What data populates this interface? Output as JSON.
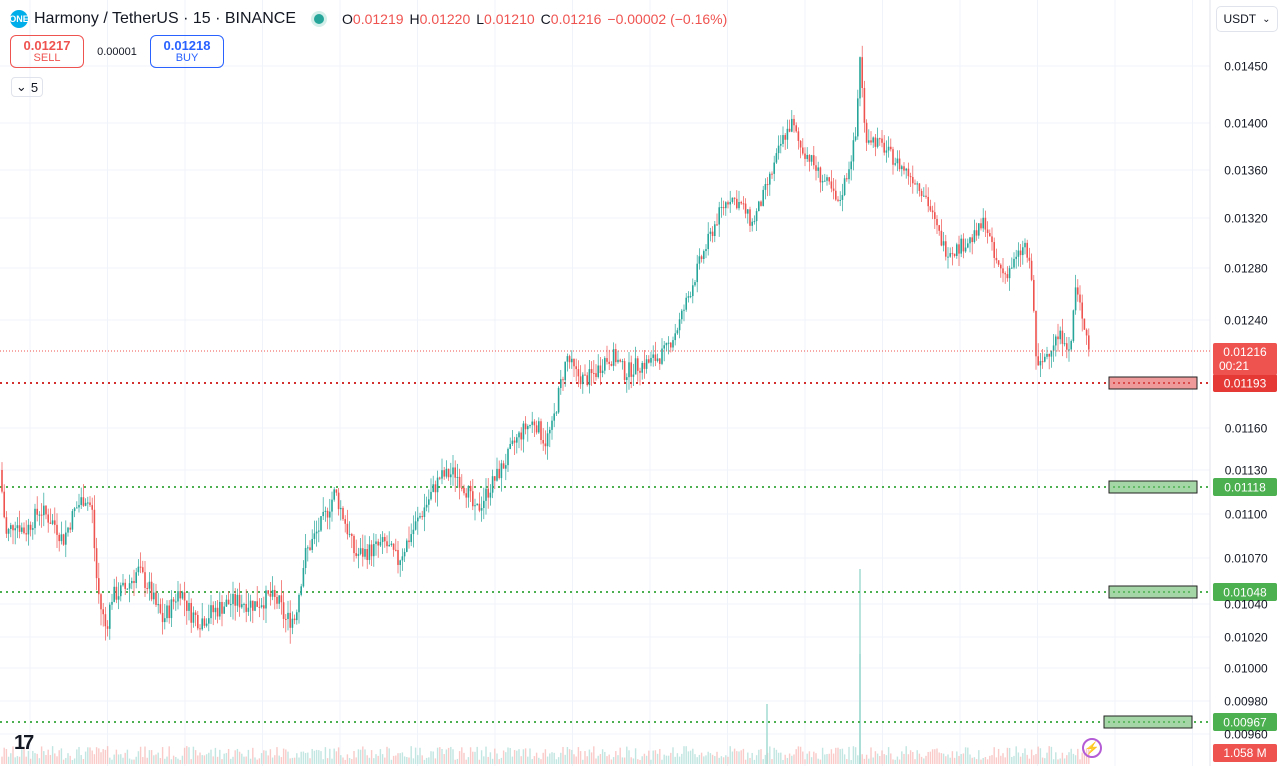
{
  "header": {
    "title": "Harmony / TetherUS · 15 · BINANCE",
    "ohlc": [
      {
        "k": "O",
        "v": "0.01219"
      },
      {
        "k": "H",
        "v": "0.01220"
      },
      {
        "k": "L",
        "v": "0.01210"
      },
      {
        "k": "C",
        "v": "0.01216"
      }
    ],
    "change": "−0.00002 (−0.16%)"
  },
  "trade": {
    "sell_price": "0.01217",
    "sell_label": "SELL",
    "spread": "0.00001",
    "buy_price": "0.01218",
    "buy_label": "BUY"
  },
  "collapse_label": "5",
  "currency": "USDT",
  "volume_label": "1.058 M",
  "colors": {
    "up": "#26a69a",
    "down": "#ef5350",
    "support": "#4caf50",
    "resistance": "#d32f2f"
  },
  "chart_data": {
    "type": "candlestick",
    "ylim": [
      0.0095,
      0.0148
    ],
    "yticks": [
      "0.01450",
      "0.01400",
      "0.01360",
      "0.01320",
      "0.01280",
      "0.01240",
      "0.01160",
      "0.01130",
      "0.01100",
      "0.01070",
      "0.01040",
      "0.01020",
      "0.01000",
      "0.00980",
      "0.00960"
    ],
    "current_price": "0.01216",
    "countdown": "00:21",
    "levels": [
      {
        "value": "0.01193",
        "kind": "resistance"
      },
      {
        "value": "0.01118",
        "kind": "support"
      },
      {
        "value": "0.01048",
        "kind": "support"
      },
      {
        "value": "0.00967",
        "kind": "support"
      }
    ],
    "price_path": [
      [
        0,
        0.0113
      ],
      [
        6,
        0.01085
      ],
      [
        15,
        0.01095
      ],
      [
        25,
        0.01088
      ],
      [
        40,
        0.01103
      ],
      [
        55,
        0.01093
      ],
      [
        63,
        0.01082
      ],
      [
        75,
        0.01103
      ],
      [
        85,
        0.01112
      ],
      [
        92,
        0.01103
      ],
      [
        96,
        0.0106
      ],
      [
        100,
        0.0104
      ],
      [
        106,
        0.01025
      ],
      [
        112,
        0.01045
      ],
      [
        125,
        0.0105
      ],
      [
        138,
        0.01062
      ],
      [
        148,
        0.01052
      ],
      [
        155,
        0.0104
      ],
      [
        163,
        0.0103
      ],
      [
        172,
        0.0104
      ],
      [
        180,
        0.0105
      ],
      [
        190,
        0.01035
      ],
      [
        200,
        0.0103
      ],
      [
        212,
        0.01035
      ],
      [
        225,
        0.0104
      ],
      [
        240,
        0.01042
      ],
      [
        255,
        0.0104
      ],
      [
        270,
        0.01045
      ],
      [
        280,
        0.0104
      ],
      [
        285,
        0.0103
      ],
      [
        295,
        0.01032
      ],
      [
        305,
        0.01072
      ],
      [
        315,
        0.01085
      ],
      [
        325,
        0.01098
      ],
      [
        335,
        0.01115
      ],
      [
        345,
        0.01095
      ],
      [
        355,
        0.01072
      ],
      [
        370,
        0.01075
      ],
      [
        385,
        0.0108
      ],
      [
        398,
        0.01068
      ],
      [
        410,
        0.01085
      ],
      [
        425,
        0.01105
      ],
      [
        440,
        0.01125
      ],
      [
        455,
        0.01128
      ],
      [
        468,
        0.01115
      ],
      [
        475,
        0.011
      ],
      [
        490,
        0.01118
      ],
      [
        505,
        0.01135
      ],
      [
        515,
        0.0115
      ],
      [
        525,
        0.0116
      ],
      [
        535,
        0.01165
      ],
      [
        545,
        0.0115
      ],
      [
        552,
        0.0116
      ],
      [
        560,
        0.0119
      ],
      [
        567,
        0.01212
      ],
      [
        575,
        0.012
      ],
      [
        585,
        0.01195
      ],
      [
        595,
        0.012
      ],
      [
        605,
        0.0121
      ],
      [
        615,
        0.01212
      ],
      [
        625,
        0.012
      ],
      [
        635,
        0.01205
      ],
      [
        650,
        0.01208
      ],
      [
        665,
        0.01215
      ],
      [
        678,
        0.01235
      ],
      [
        690,
        0.01262
      ],
      [
        700,
        0.01285
      ],
      [
        710,
        0.01305
      ],
      [
        720,
        0.01325
      ],
      [
        730,
        0.01338
      ],
      [
        742,
        0.0133
      ],
      [
        752,
        0.01315
      ],
      [
        762,
        0.01335
      ],
      [
        772,
        0.01358
      ],
      [
        782,
        0.01385
      ],
      [
        792,
        0.014
      ],
      [
        800,
        0.0138
      ],
      [
        810,
        0.0137
      ],
      [
        820,
        0.01355
      ],
      [
        830,
        0.01345
      ],
      [
        838,
        0.0133
      ],
      [
        848,
        0.0136
      ],
      [
        856,
        0.0139
      ],
      [
        860,
        0.0146
      ],
      [
        865,
        0.0139
      ],
      [
        875,
        0.01385
      ],
      [
        885,
        0.01378
      ],
      [
        895,
        0.01368
      ],
      [
        905,
        0.0136
      ],
      [
        915,
        0.01352
      ],
      [
        925,
        0.0134
      ],
      [
        935,
        0.01315
      ],
      [
        945,
        0.01295
      ],
      [
        955,
        0.01295
      ],
      [
        965,
        0.013
      ],
      [
        975,
        0.01305
      ],
      [
        985,
        0.01318
      ],
      [
        995,
        0.01285
      ],
      [
        1005,
        0.01275
      ],
      [
        1015,
        0.01285
      ],
      [
        1025,
        0.01298
      ],
      [
        1032,
        0.0127
      ],
      [
        1037,
        0.012
      ],
      [
        1045,
        0.01212
      ],
      [
        1055,
        0.01225
      ],
      [
        1065,
        0.01228
      ],
      [
        1070,
        0.0121
      ],
      [
        1075,
        0.01265
      ],
      [
        1082,
        0.01245
      ],
      [
        1090,
        0.01216
      ]
    ],
    "volume_spikes": [
      [
        860,
        195
      ],
      [
        767,
        60
      ],
      [
        860,
        110
      ]
    ]
  }
}
